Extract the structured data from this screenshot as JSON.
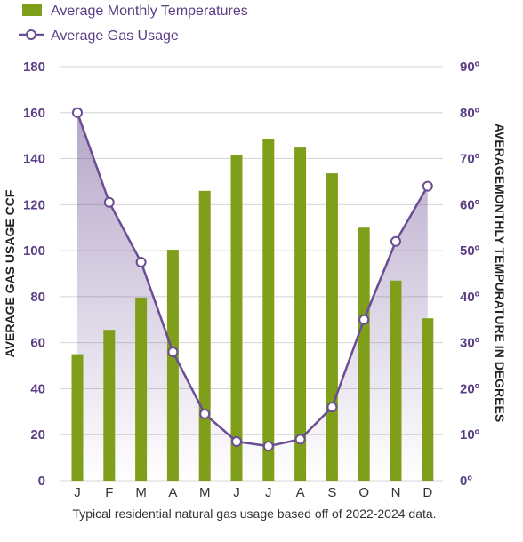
{
  "chart_data": {
    "type": "bar+line",
    "categories": [
      "J",
      "F",
      "M",
      "A",
      "M",
      "J",
      "J",
      "A",
      "S",
      "O",
      "N",
      "D"
    ],
    "series": [
      {
        "name": "Average Monthly Temperatures",
        "type": "bar",
        "axis": "right",
        "values": [
          27.5,
          32.8,
          39.8,
          50.2,
          63.0,
          70.8,
          74.2,
          72.4,
          66.8,
          55.0,
          43.5,
          35.3
        ]
      },
      {
        "name": "Average Gas Usage",
        "type": "line",
        "axis": "left",
        "values": [
          160,
          121,
          95,
          56,
          29,
          17,
          15,
          18,
          32,
          70,
          104,
          128
        ]
      }
    ],
    "left_axis": {
      "label": "AVERAGE GAS USAGE CCF",
      "ticks": [
        "0",
        "20",
        "40",
        "60",
        "80",
        "100",
        "120",
        "140",
        "160",
        "180"
      ],
      "range": [
        0,
        180
      ]
    },
    "right_axis": {
      "label": "AVERAGEMONTHLY TEMPURATURE IN DEGREES",
      "ticks": [
        "0º",
        "10º",
        "20º",
        "30º",
        "40º",
        "50º",
        "60º",
        "70º",
        "80º",
        "90º"
      ],
      "range": [
        0,
        90
      ]
    },
    "caption": "Typical residential natural gas usage based off of 2022-2024 data.",
    "legend_position": "top-left",
    "grid": true
  },
  "colors": {
    "bar": "#7f9f1a",
    "line": "#6b4d93",
    "axis_text": "#5a3d84",
    "grid": "#d4d4d4"
  }
}
